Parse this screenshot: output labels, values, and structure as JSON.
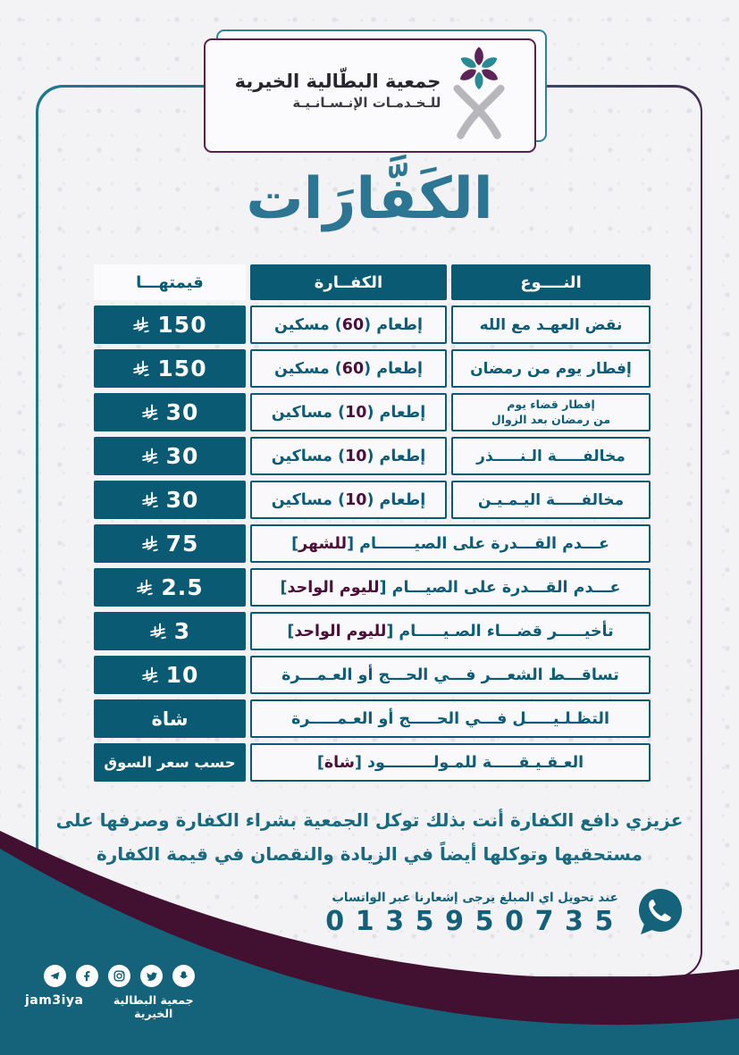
{
  "org": {
    "name_line1": "جمعية البطّالية الخيرية",
    "name_line2": "للـخـدمـات الإنـسـانـيـة",
    "logo_icon": "flower-emblem-icon"
  },
  "title": "الكَفَّارَات",
  "table": {
    "headers": {
      "type": "النــــوع",
      "kaffarah": "الكفــارة",
      "value": "قيمتهـــا"
    },
    "currency_symbol": "saudi-riyal-symbol",
    "rows": [
      {
        "type": "نقض العهـد مع الله",
        "kaffarah_pre": "إطعام ( ",
        "kaffarah_num": "60",
        "kaffarah_post": " ) مسكين",
        "value": "150",
        "value_currency": true
      },
      {
        "type": "إفطار يوم من رمضان",
        "kaffarah_pre": "إطعام ( ",
        "kaffarah_num": "60",
        "kaffarah_post": " ) مسكين",
        "value": "150",
        "value_currency": true
      },
      {
        "type_line1": "إفطار قضاء يوم",
        "type_line2": "من رمضان بعد الزوال",
        "kaffarah_pre": "إطعام ( ",
        "kaffarah_num": "10",
        "kaffarah_post": " ) مساكين",
        "value": "30",
        "value_currency": true
      },
      {
        "type": "مخالفـــــة الـنـــــذر",
        "kaffarah_pre": "إطعام ( ",
        "kaffarah_num": "10",
        "kaffarah_post": " ) مساكين",
        "value": "30",
        "value_currency": true
      },
      {
        "type": "مخالفـــــة اليـمـيـن",
        "kaffarah_pre": "إطعام ( ",
        "kaffarah_num": "10",
        "kaffarah_post": " ) مساكين",
        "value": "30",
        "value_currency": true
      },
      {
        "merged": true,
        "desc_pre": "عـــدم القـــدرة على الصيـــــــام [ ",
        "desc_hl": "للشهر",
        "desc_post": " ]",
        "value": "75",
        "value_currency": true
      },
      {
        "merged": true,
        "desc_pre": "عـــدم القـــدرة على الصيـــام [ ",
        "desc_hl": "لليوم الواحد",
        "desc_post": " ]",
        "value": "2.5",
        "value_currency": true
      },
      {
        "merged": true,
        "desc_pre": "تأخيـــــر قضـــاء الصـيـــــام [ ",
        "desc_hl": "لليوم الواحد",
        "desc_post": " ]",
        "value": "3",
        "value_currency": true
      },
      {
        "merged": true,
        "desc_pre": "تساقـــط الشعـــر فـــي الحـــج أو العـمـــرة",
        "value": "10",
        "value_currency": true
      },
      {
        "merged": true,
        "desc_pre": "التظـلـيـــــل فـــي الحـــــج أو العـمـــــرة",
        "value": "شاة",
        "value_currency": false
      },
      {
        "merged": true,
        "desc_pre": "العـقـيـقـــــة للمـولـــــــــود [ ",
        "desc_hl": "شاة",
        "desc_post": " ]",
        "value": "حسب سعر السوق",
        "value_currency": false
      }
    ]
  },
  "note": {
    "line1": "عزيزي دافع الكفارة أنت بذلك توكل الجمعية بشراء الكفارة وصرفها على",
    "line2": "مستحقيها وتوكلها أيضاً في الزيادة والنقصان في قيمة الكفارة"
  },
  "whatsapp": {
    "note": "عند تحويل اي المبلغ يرجى إشعارنا عبر الواتساب",
    "phone": "0135950735",
    "icon": "whatsapp-icon"
  },
  "footer": {
    "handle_latin": "jam3iya",
    "handle_arabic": "جمعية البطالية الخيرية",
    "social_icons": [
      "telegram-icon",
      "facebook-icon",
      "instagram-icon",
      "twitter-icon",
      "snapchat-icon"
    ]
  },
  "colors": {
    "teal": "#0a5a73",
    "teal_text": "#0e5c75",
    "maroon_highlight": "#4b1038",
    "curve_maroon": "#421031",
    "curve_teal": "#15637a",
    "title_teal": "#2c7694",
    "page_bg": "#f3f2f5"
  }
}
